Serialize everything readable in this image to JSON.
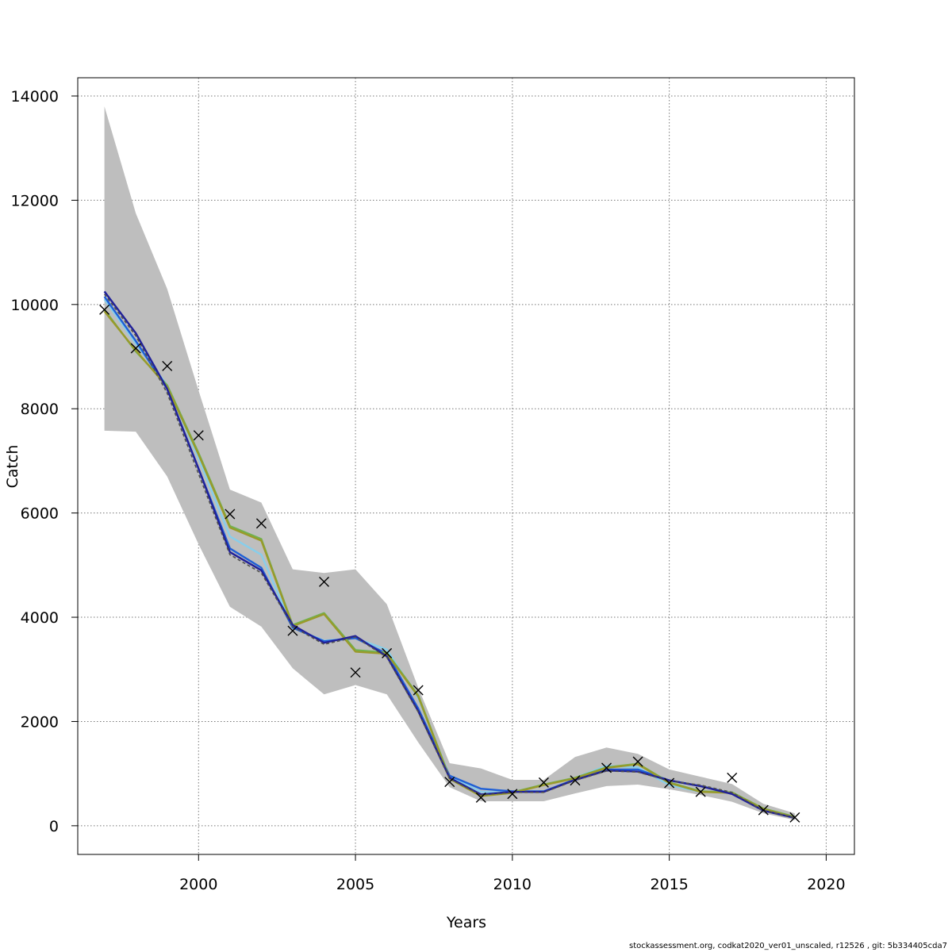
{
  "chart_data": {
    "type": "line",
    "xlabel": "Years",
    "ylabel": "Catch",
    "xlim": [
      1996.15,
      2020.9
    ],
    "ylim": [
      -550,
      14350
    ],
    "xticks": [
      2000,
      2005,
      2010,
      2015,
      2020
    ],
    "yticks": [
      0,
      2000,
      4000,
      6000,
      8000,
      10000,
      12000,
      14000
    ],
    "grid": true,
    "x": [
      1997,
      1998,
      1999,
      2000,
      2001,
      2002,
      2003,
      2004,
      2005,
      2006,
      2007,
      2008,
      2009,
      2010,
      2011,
      2012,
      2013,
      2014,
      2015,
      2016,
      2017,
      2018,
      2019
    ],
    "confidence_band": {
      "color": "#bebebe",
      "upper": [
        13800,
        11750,
        10300,
        8350,
        6450,
        6200,
        4920,
        4850,
        4920,
        4250,
        2650,
        1200,
        1100,
        880,
        880,
        1320,
        1500,
        1380,
        1080,
        940,
        800,
        420,
        240
      ],
      "lower": [
        7580,
        7560,
        6700,
        5400,
        4200,
        3820,
        3020,
        2520,
        2700,
        2520,
        1600,
        740,
        470,
        470,
        470,
        620,
        760,
        790,
        700,
        590,
        460,
        240,
        110
      ]
    },
    "observed": {
      "marker": "x",
      "values": [
        9900,
        9160,
        8820,
        7490,
        5980,
        5800,
        3740,
        4680,
        2940,
        3310,
        2600,
        840,
        540,
        610,
        830,
        870,
        1110,
        1230,
        820,
        650,
        920,
        300,
        160
      ]
    },
    "series": [
      {
        "color": "#87ceeb",
        "values": [
          10100,
          9250,
          8450,
          7050,
          5550,
          5200,
          3800,
          3550,
          3600,
          3380,
          2450,
          950,
          650,
          640,
          780,
          920,
          1150,
          1120,
          780,
          650,
          640,
          320,
          150
        ]
      },
      {
        "color": "#1f5fd6",
        "values": [
          10150,
          9300,
          8380,
          6850,
          5320,
          4950,
          3800,
          3540,
          3600,
          3300,
          2250,
          960,
          710,
          660,
          660,
          890,
          1080,
          1080,
          870,
          760,
          620,
          300,
          150
        ]
      },
      {
        "color": "#6fb24f",
        "values": [
          9900,
          9100,
          8450,
          7150,
          5750,
          5500,
          3850,
          4080,
          3370,
          3320,
          2500,
          920,
          580,
          640,
          790,
          920,
          1120,
          1190,
          830,
          660,
          640,
          330,
          170
        ]
      },
      {
        "color": "#9a9a2a",
        "values": [
          9870,
          9120,
          8420,
          7120,
          5720,
          5470,
          3830,
          4060,
          3340,
          3300,
          2480,
          900,
          570,
          630,
          780,
          910,
          1110,
          1180,
          820,
          650,
          630,
          320,
          160
        ]
      },
      {
        "color": "#20209a",
        "values": [
          10250,
          9450,
          8380,
          6850,
          5250,
          4900,
          3850,
          3510,
          3640,
          3250,
          2200,
          920,
          600,
          650,
          650,
          880,
          1060,
          1040,
          870,
          760,
          610,
          290,
          150
        ]
      },
      {
        "color": "#505050",
        "dashed": true,
        "values": [
          10200,
          9400,
          8300,
          6750,
          5200,
          4850,
          3820,
          3480,
          3620,
          3230,
          2180,
          900,
          590,
          640,
          640,
          870,
          1050,
          1030,
          860,
          780,
          640,
          290,
          150
        ]
      }
    ]
  },
  "footer_text": "stockassessment.org, codkat2020_ver01_unscaled, r12526 , git: 5b334405cda7"
}
